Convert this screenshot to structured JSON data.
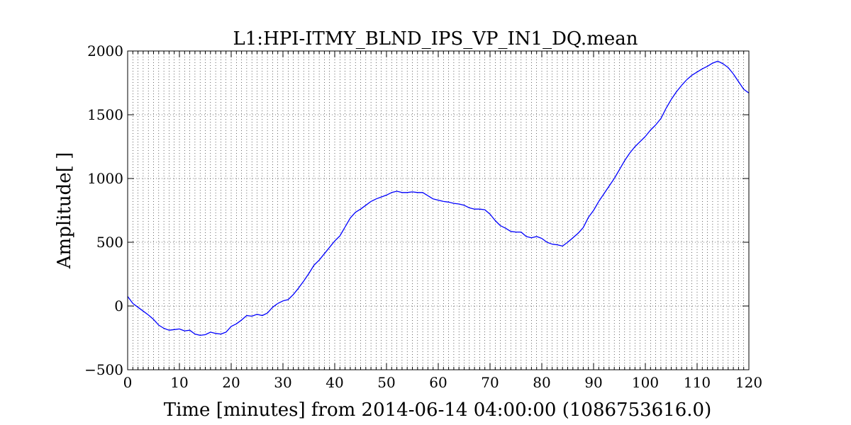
{
  "chart_data": {
    "type": "line",
    "title": "L1:HPI-ITMY_BLND_IPS_VP_IN1_DQ.mean",
    "xlabel": "Time [minutes] from 2014-06-14 04:00:00 (1086753616.0)",
    "ylabel": "Amplitude[ ]",
    "xlim": [
      0,
      120
    ],
    "ylim": [
      -500,
      2000
    ],
    "x_ticks": [
      "0",
      "10",
      "20",
      "30",
      "40",
      "50",
      "60",
      "70",
      "80",
      "90",
      "100",
      "110",
      "120"
    ],
    "y_ticks": [
      "−500",
      "0",
      "500",
      "1000",
      "1500",
      "2000"
    ],
    "x_tick_values": [
      0,
      10,
      20,
      30,
      40,
      50,
      60,
      70,
      80,
      90,
      100,
      110,
      120
    ],
    "y_tick_values": [
      -500,
      0,
      500,
      1000,
      1500,
      2000
    ],
    "x_minor_step": 1,
    "grid": true,
    "line_color": "#0000ff",
    "series": [
      {
        "x": [
          0,
          1,
          2,
          3,
          4,
          5,
          6,
          7,
          8,
          9,
          10,
          11,
          12,
          13,
          14,
          15,
          16,
          17,
          18,
          19,
          20,
          21,
          22,
          23,
          24,
          25,
          26,
          27,
          28,
          29,
          30,
          31,
          32,
          33,
          34,
          35,
          36,
          37,
          38,
          39,
          40,
          41,
          42,
          43,
          44,
          45,
          46,
          47,
          48,
          49,
          50,
          51,
          52,
          53,
          54,
          55,
          56,
          57,
          58,
          59,
          60,
          61,
          62,
          63,
          64,
          65,
          66,
          67,
          68,
          69,
          70,
          71,
          72,
          73,
          74,
          75,
          76,
          77,
          78,
          79,
          80,
          81,
          82,
          83,
          84,
          85,
          86,
          87,
          88,
          89,
          90,
          91,
          92,
          93,
          94,
          95,
          96,
          97,
          98,
          99,
          100,
          101,
          102,
          103,
          104,
          105,
          106,
          107,
          108,
          109,
          110,
          111,
          112,
          113,
          114,
          115,
          116,
          117,
          118,
          119,
          120
        ],
        "y": [
          75,
          20,
          -10,
          -40,
          -70,
          -105,
          -150,
          -175,
          -190,
          -185,
          -180,
          -195,
          -190,
          -220,
          -230,
          -225,
          -205,
          -215,
          -220,
          -205,
          -160,
          -140,
          -110,
          -75,
          -80,
          -65,
          -75,
          -55,
          -10,
          20,
          40,
          50,
          90,
          140,
          195,
          255,
          320,
          360,
          410,
          460,
          510,
          550,
          620,
          690,
          735,
          760,
          790,
          820,
          840,
          855,
          870,
          890,
          900,
          890,
          890,
          895,
          890,
          890,
          865,
          840,
          830,
          820,
          815,
          805,
          800,
          790,
          770,
          760,
          760,
          755,
          720,
          670,
          630,
          610,
          585,
          580,
          580,
          545,
          535,
          545,
          530,
          500,
          485,
          480,
          470,
          500,
          535,
          570,
          615,
          695,
          750,
          820,
          880,
          940,
          1000,
          1070,
          1140,
          1200,
          1250,
          1290,
          1330,
          1380,
          1420,
          1470,
          1550,
          1620,
          1680,
          1730,
          1775,
          1810,
          1835,
          1860,
          1880,
          1905,
          1920,
          1900,
          1870,
          1820,
          1760,
          1700,
          1670
        ]
      }
    ]
  }
}
